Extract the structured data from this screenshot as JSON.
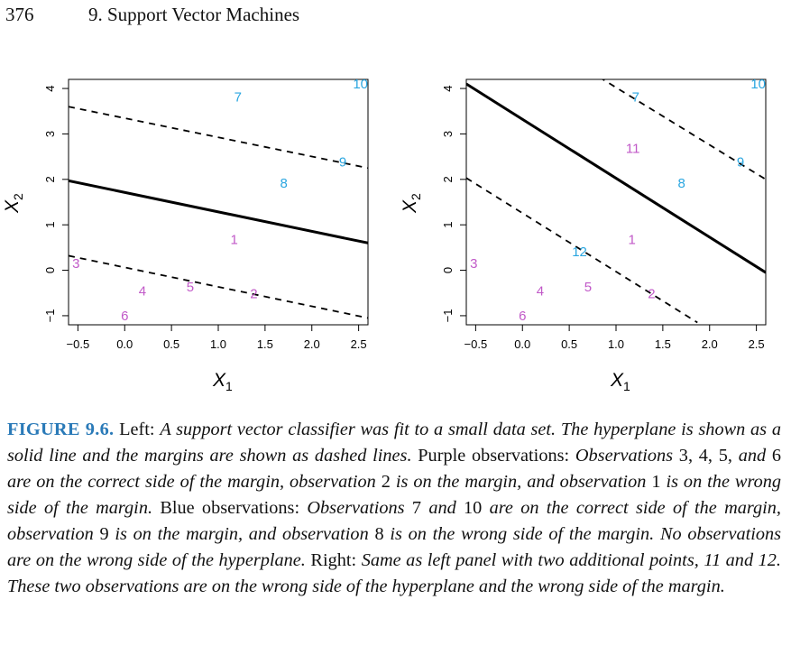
{
  "header": {
    "page_number": "376",
    "chapter_title": "9.  Support Vector Machines"
  },
  "colors": {
    "purple": "#c159c8",
    "blue": "#2aa6e0",
    "line": "#000000"
  },
  "chart_data": [
    {
      "type": "scatter",
      "xlabel_base": "X",
      "xlabel_sub": "1",
      "ylabel_base": "X",
      "ylabel_sub": "2",
      "xlim": [
        -0.6,
        2.6
      ],
      "ylim": [
        -1.2,
        4.2
      ],
      "xticks": [
        "−0.5",
        "0.0",
        "0.5",
        "1.0",
        "1.5",
        "2.0",
        "2.5"
      ],
      "yticks": [
        "−1",
        "0",
        "1",
        "2",
        "3",
        "4"
      ],
      "hyperplane": [
        [
          -0.6,
          1.97
        ],
        [
          2.6,
          0.6
        ]
      ],
      "margins": [
        [
          [
            -0.6,
            3.6
          ],
          [
            2.6,
            2.25
          ]
        ],
        [
          [
            -0.6,
            0.32
          ],
          [
            2.6,
            -1.05
          ]
        ]
      ],
      "points": [
        {
          "label": "1",
          "x": 1.17,
          "y": 0.68,
          "class": "purple"
        },
        {
          "label": "2",
          "x": 1.38,
          "y": -0.52,
          "class": "purple"
        },
        {
          "label": "3",
          "x": -0.52,
          "y": 0.15,
          "class": "purple"
        },
        {
          "label": "4",
          "x": 0.19,
          "y": -0.46,
          "class": "purple"
        },
        {
          "label": "5",
          "x": 0.7,
          "y": -0.37,
          "class": "purple"
        },
        {
          "label": "6",
          "x": 0.0,
          "y": -1.0,
          "class": "purple"
        },
        {
          "label": "7",
          "x": 1.21,
          "y": 3.81,
          "class": "blue"
        },
        {
          "label": "8",
          "x": 1.7,
          "y": 1.92,
          "class": "blue"
        },
        {
          "label": "9",
          "x": 2.33,
          "y": 2.38,
          "class": "blue"
        },
        {
          "label": "10",
          "x": 2.52,
          "y": 4.1,
          "class": "blue"
        }
      ]
    },
    {
      "type": "scatter",
      "xlabel_base": "X",
      "xlabel_sub": "1",
      "ylabel_base": "X",
      "ylabel_sub": "2",
      "xlim": [
        -0.6,
        2.6
      ],
      "ylim": [
        -1.2,
        4.2
      ],
      "xticks": [
        "−0.5",
        "0.0",
        "0.5",
        "1.0",
        "1.5",
        "2.0",
        "2.5"
      ],
      "yticks": [
        "−1",
        "0",
        "1",
        "2",
        "3",
        "4"
      ],
      "hyperplane": [
        [
          -0.6,
          4.1
        ],
        [
          2.6,
          -0.05
        ]
      ],
      "margins": [
        [
          [
            0.82,
            4.25
          ],
          [
            2.6,
            2.0
          ]
        ],
        [
          [
            -0.6,
            2.03
          ],
          [
            1.87,
            -1.15
          ]
        ]
      ],
      "points": [
        {
          "label": "1",
          "x": 1.17,
          "y": 0.68,
          "class": "purple"
        },
        {
          "label": "2",
          "x": 1.38,
          "y": -0.52,
          "class": "purple"
        },
        {
          "label": "3",
          "x": -0.52,
          "y": 0.15,
          "class": "purple"
        },
        {
          "label": "4",
          "x": 0.19,
          "y": -0.46,
          "class": "purple"
        },
        {
          "label": "5",
          "x": 0.7,
          "y": -0.37,
          "class": "purple"
        },
        {
          "label": "6",
          "x": 0.0,
          "y": -1.0,
          "class": "purple"
        },
        {
          "label": "11",
          "x": 1.18,
          "y": 2.68,
          "class": "purple"
        },
        {
          "label": "7",
          "x": 1.21,
          "y": 3.81,
          "class": "blue"
        },
        {
          "label": "8",
          "x": 1.7,
          "y": 1.92,
          "class": "blue"
        },
        {
          "label": "9",
          "x": 2.33,
          "y": 2.38,
          "class": "blue"
        },
        {
          "label": "10",
          "x": 2.52,
          "y": 4.1,
          "class": "blue"
        },
        {
          "label": "12",
          "x": 0.61,
          "y": 0.41,
          "class": "blue"
        }
      ]
    }
  ],
  "caption": {
    "label": "FIGURE 9.6.",
    "t1": " Left: ",
    "t2": "A support vector classifier was fit to a small data set. The hyperplane is shown as a solid line and the margins are shown as dashed lines.",
    "t3": " Purple observations: ",
    "t4": "Observations",
    "t5": " 3, 4, 5, ",
    "t6": "and",
    "t7": " 6 ",
    "t8": "are on the correct side of the margin, observation",
    "t9": " 2 ",
    "t10": "is on the margin, and observation",
    "t11": " 1 ",
    "t12": "is on the wrong side of the margin.",
    "t13": " Blue observations: ",
    "t14": "Observations",
    "t15": " 7 ",
    "t16": "and",
    "t17": " 10 ",
    "t18": "are on the correct side of the margin, observation",
    "t19": " 9 ",
    "t20": "is on the margin, and observation",
    "t21": " 8 ",
    "t22": "is on the wrong side of the margin. No observations are on the wrong side of the hyperplane.",
    "t23": " Right: ",
    "t24": "Same as left panel with two additional points, 11 and 12. These two observations are on the wrong side of the hyperplane and the wrong side of the margin."
  }
}
